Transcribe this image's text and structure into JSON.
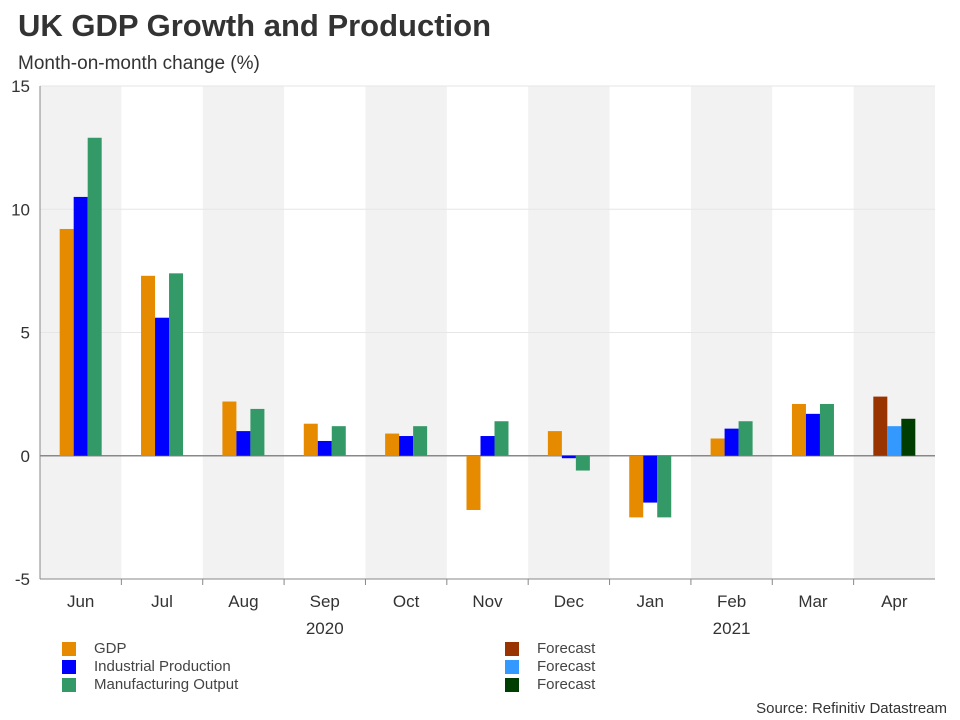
{
  "chart_data": {
    "type": "bar",
    "title": "UK GDP Growth and Production",
    "subtitle": "Month-on-month change (%)",
    "categories": [
      "Jun",
      "Jul",
      "Aug",
      "Sep",
      "Oct",
      "Nov",
      "Dec",
      "Jan",
      "Feb",
      "Mar",
      "Apr"
    ],
    "year_labels": [
      {
        "label": "2020",
        "category": "Sep"
      },
      {
        "label": "2021",
        "category": "Feb"
      }
    ],
    "ylim": [
      -5,
      15
    ],
    "yticks": [
      -5,
      0,
      5,
      10,
      15
    ],
    "grid": true,
    "legend_placement": "bottom",
    "series": [
      {
        "name": "GDP",
        "color": "#e68a00",
        "forecast_color": "#993300",
        "values": [
          9.2,
          7.3,
          2.2,
          1.3,
          0.9,
          -2.2,
          1.0,
          -2.5,
          0.7,
          2.1,
          2.4
        ]
      },
      {
        "name": "Industrial Production",
        "color": "#0000ff",
        "forecast_color": "#3399ff",
        "values": [
          10.5,
          5.6,
          1.0,
          0.6,
          0.8,
          0.8,
          -0.1,
          -1.9,
          1.1,
          1.7,
          1.2
        ]
      },
      {
        "name": "Manufacturing Output",
        "color": "#339966",
        "forecast_color": "#003d00",
        "values": [
          12.9,
          7.4,
          1.9,
          1.2,
          1.2,
          1.4,
          -0.6,
          -2.5,
          1.4,
          2.1,
          1.5
        ]
      }
    ],
    "forecast_categories": [
      "Apr"
    ],
    "forecast_label": "Forecast",
    "source": "Source: Refinitiv Datastream"
  }
}
